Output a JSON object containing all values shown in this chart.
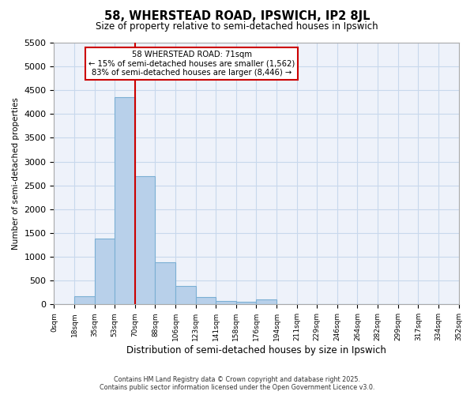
{
  "title": "58, WHERSTEAD ROAD, IPSWICH, IP2 8JL",
  "subtitle": "Size of property relative to semi-detached houses in Ipswich",
  "xlabel": "Distribution of semi-detached houses by size in Ipswich",
  "ylabel": "Number of semi-detached properties",
  "bar_color": "#b8d0ea",
  "bar_edge_color": "#7bafd4",
  "grid_color": "#c8d8ec",
  "background_color": "#eef2fa",
  "tick_labels": [
    "0sqm",
    "18sqm",
    "35sqm",
    "53sqm",
    "70sqm",
    "88sqm",
    "106sqm",
    "123sqm",
    "141sqm",
    "158sqm",
    "176sqm",
    "194sqm",
    "211sqm",
    "229sqm",
    "246sqm",
    "264sqm",
    "282sqm",
    "299sqm",
    "317sqm",
    "334sqm",
    "352sqm"
  ],
  "bar_values": [
    5,
    170,
    1390,
    4350,
    2700,
    880,
    390,
    160,
    80,
    50,
    100,
    0,
    0,
    0,
    0,
    0,
    0,
    0,
    0,
    0
  ],
  "ylim": [
    0,
    5500
  ],
  "yticks": [
    0,
    500,
    1000,
    1500,
    2000,
    2500,
    3000,
    3500,
    4000,
    4500,
    5000,
    5500
  ],
  "property_line_x": 4.0,
  "annotation_line1": "58 WHERSTEAD ROAD: 71sqm",
  "annotation_line2": "← 15% of semi-detached houses are smaller (1,562)",
  "annotation_line3": "83% of semi-detached houses are larger (8,446) →",
  "footer_line1": "Contains HM Land Registry data © Crown copyright and database right 2025.",
  "footer_line2": "Contains public sector information licensed under the Open Government Licence v3.0."
}
